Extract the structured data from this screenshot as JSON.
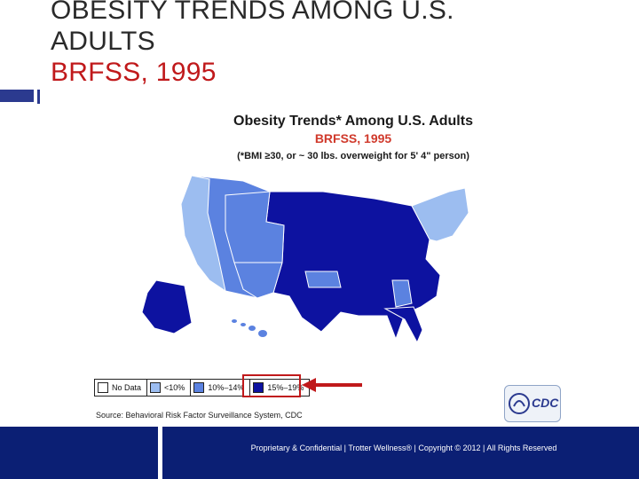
{
  "slide": {
    "title_line1": "OBESITY TRENDS AMONG U.S.",
    "title_line2": "ADULTS",
    "title_line3": "BRFSS, 1995"
  },
  "figure": {
    "title": "Obesity Trends* Among U.S. Adults",
    "subtitle": "BRFSS, 1995",
    "note": "(*BMI ≥30, or ~ 30 lbs. overweight for 5' 4\" person)",
    "legend": [
      {
        "label": "No Data",
        "color": "#ffffff"
      },
      {
        "label": "<10%",
        "color": "#9cbdf0"
      },
      {
        "label": "10%–14%",
        "color": "#5b82e0"
      },
      {
        "label": "15%–19%",
        "color": "#0d12a0"
      }
    ],
    "highlighted_legend_item": "15%–19%",
    "source": "Source: Behavioral Risk Factor Surveillance System, CDC",
    "logo_text": "CDC",
    "colors": {
      "no_data": "#ffffff",
      "lt10": "#9cbdf0",
      "p10_14": "#5b82e0",
      "p15_19": "#0d12a0",
      "arrow": "#c0191b"
    }
  },
  "footer": {
    "text": "Proprietary & Confidential | Trotter Wellness® | Copyright © 2012 | All Rights Reserved"
  }
}
